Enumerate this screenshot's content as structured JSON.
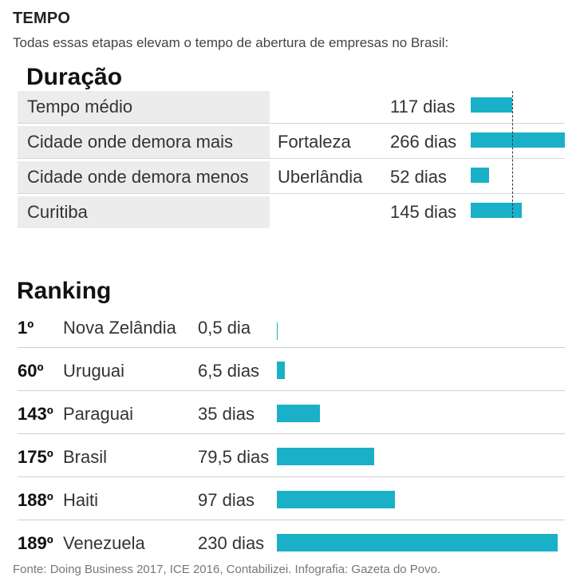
{
  "header": {
    "kicker": "TEMPO",
    "subtitle": "Todas essas etapas elevam o tempo de abertura de empresas no Brasil:"
  },
  "chart_data": [
    {
      "type": "bar",
      "title": "Duração",
      "unit": "dias",
      "reference_line": {
        "label": "Tempo médio",
        "value": 117
      },
      "rows": [
        {
          "label": "Tempo médio",
          "city": "",
          "days_text": "117 dias",
          "value": 117
        },
        {
          "label": "Cidade onde demora mais",
          "city": "Fortaleza",
          "days_text": "266 dias",
          "value": 266
        },
        {
          "label": "Cidade onde demora menos",
          "city": "Uberlândia",
          "days_text": "52 dias",
          "value": 52
        },
        {
          "label": "Curitiba",
          "city": "",
          "days_text": "145 dias",
          "value": 145
        }
      ],
      "xlim": [
        0,
        266
      ]
    },
    {
      "type": "bar",
      "title": "Ranking",
      "unit": "dias",
      "rows": [
        {
          "position": "1º",
          "country": "Nova Zelândia",
          "days_text": "0,5 dia",
          "value": 0.5
        },
        {
          "position": "60º",
          "country": "Uruguai",
          "days_text": "6,5 dias",
          "value": 6.5
        },
        {
          "position": "143º",
          "country": "Paraguai",
          "days_text": "35 dias",
          "value": 35
        },
        {
          "position": "175º",
          "country": "Brasil",
          "days_text": "79,5 dias",
          "value": 79.5
        },
        {
          "position": "188º",
          "country": "Haiti",
          "days_text": "97 dias",
          "value": 97
        },
        {
          "position": "189º",
          "country": "Venezuela",
          "days_text": "230 dias",
          "value": 230
        }
      ],
      "xlim": [
        0,
        230
      ]
    }
  ],
  "footer": {
    "source": "Fonte: Doing Business 2017, ICE 2016, Contabilizei. Infografia: Gazeta do Povo."
  },
  "colors": {
    "bar": "#1ab0c8",
    "shade": "#ececec"
  }
}
